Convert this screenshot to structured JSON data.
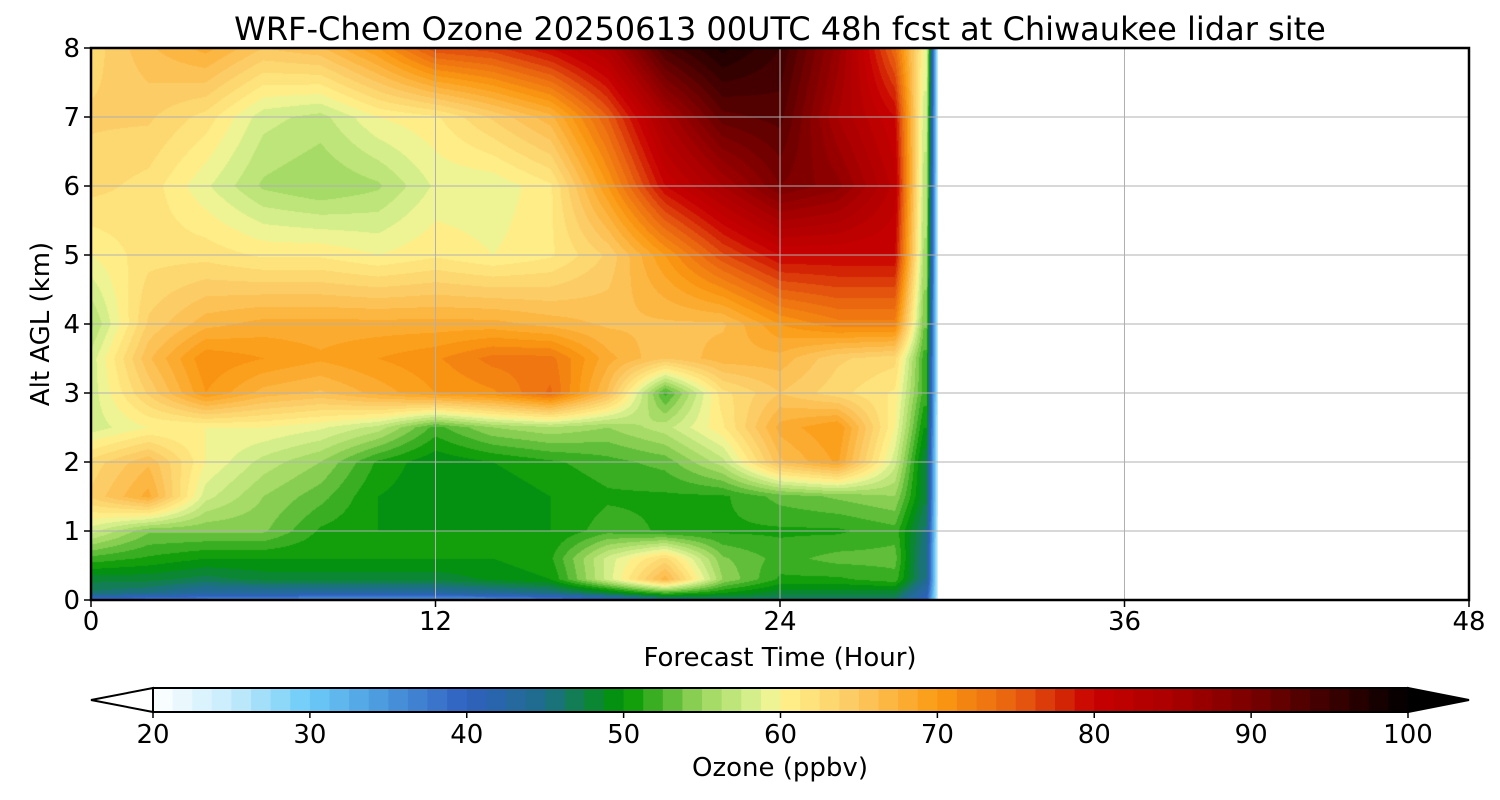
{
  "chart_data": {
    "type": "heatmap",
    "title": "WRF-Chem Ozone  20250613 00UTC 48h fcst at Chiwaukee lidar site",
    "xlabel": "Forecast Time (Hour)",
    "ylabel": "Alt AGL (km)",
    "xlim": [
      0,
      48
    ],
    "ylim": [
      0,
      8
    ],
    "xticks": [
      "0",
      "12",
      "24",
      "36",
      "48"
    ],
    "yticks": [
      "0",
      "1",
      "2",
      "3",
      "4",
      "5",
      "6",
      "7",
      "8"
    ],
    "grid": true,
    "data_extent_hours": [
      0,
      29.5
    ],
    "x_hours": [
      0,
      2,
      4,
      6,
      8,
      10,
      12,
      14,
      16,
      18,
      20,
      22,
      24,
      26,
      28,
      29
    ],
    "y_km": [
      0,
      0.1,
      0.3,
      0.6,
      1,
      1.5,
      2,
      2.5,
      3,
      3.5,
      4,
      5,
      6,
      7,
      8
    ],
    "z_ppbv": [
      [
        37,
        37,
        36,
        35,
        34,
        33,
        33,
        34,
        36,
        40,
        44,
        46,
        46,
        46,
        46,
        40
      ],
      [
        46,
        45,
        43,
        43,
        43,
        43,
        43,
        44,
        45,
        48,
        52,
        50,
        48,
        48,
        48,
        42
      ],
      [
        48,
        48,
        47,
        48,
        48,
        48,
        48,
        49,
        50,
        58,
        67,
        55,
        51,
        51,
        52,
        45
      ],
      [
        52,
        51,
        50,
        50,
        50,
        50,
        50,
        50,
        51,
        58,
        63,
        54,
        52,
        53,
        53,
        45
      ],
      [
        58,
        54,
        54,
        54,
        51,
        50,
        50,
        50,
        50,
        52,
        51,
        51,
        51,
        51,
        52,
        46
      ],
      [
        64,
        68,
        58,
        55,
        53,
        50,
        49,
        49,
        50,
        51,
        51,
        51,
        53,
        54,
        55,
        48
      ],
      [
        63,
        66,
        60,
        57,
        55,
        51,
        49,
        50,
        51,
        52,
        53,
        57,
        66,
        69,
        58,
        48
      ],
      [
        58,
        60,
        60,
        60,
        59,
        57,
        52,
        55,
        56,
        55,
        57,
        61,
        68,
        70,
        60,
        50
      ],
      [
        58,
        64,
        70,
        67,
        66,
        68,
        70,
        71,
        74,
        66,
        52,
        62,
        65,
        63,
        61,
        52
      ],
      [
        58,
        66,
        71,
        70,
        69,
        70,
        71,
        73,
        73,
        68,
        65,
        67,
        67,
        64,
        63,
        52
      ],
      [
        56,
        64,
        67,
        68,
        68,
        68,
        68,
        68,
        67,
        66,
        66,
        66,
        70,
        72,
        72,
        54
      ],
      [
        60,
        62,
        62,
        61,
        61,
        60,
        61,
        60,
        61,
        64,
        70,
        76,
        80,
        80,
        80,
        56
      ],
      [
        63,
        62,
        59,
        56,
        55,
        56,
        59,
        59,
        61,
        70,
        80,
        85,
        90,
        88,
        82,
        57
      ],
      [
        64,
        64,
        62,
        58,
        57,
        60,
        61,
        64,
        67,
        75,
        85,
        92,
        93,
        85,
        80,
        58
      ],
      [
        63,
        66,
        68,
        65,
        66,
        70,
        76,
        77,
        80,
        84,
        94,
        98,
        95,
        87,
        74,
        60
      ]
    ],
    "colorbar": {
      "label": "Ozone  (ppbv)",
      "ticks": [
        "20",
        "30",
        "40",
        "50",
        "60",
        "70",
        "80",
        "90",
        "100"
      ],
      "min": 20,
      "max": 100,
      "extend": "both",
      "stops": [
        {
          "v": 20,
          "c": "#ffffff"
        },
        {
          "v": 25,
          "c": "#c6ebfb"
        },
        {
          "v": 30,
          "c": "#6bcbf8"
        },
        {
          "v": 35,
          "c": "#4a95dc"
        },
        {
          "v": 40,
          "c": "#3060c0"
        },
        {
          "v": 45,
          "c": "#1e6e8a"
        },
        {
          "v": 50,
          "c": "#009600"
        },
        {
          "v": 55,
          "c": "#9ad65e"
        },
        {
          "v": 59,
          "c": "#e4f598"
        },
        {
          "v": 60,
          "c": "#fff38c"
        },
        {
          "v": 65,
          "c": "#fcc860"
        },
        {
          "v": 70,
          "c": "#fb9a12"
        },
        {
          "v": 75,
          "c": "#e86010"
        },
        {
          "v": 80,
          "c": "#c80000"
        },
        {
          "v": 85,
          "c": "#aa0000"
        },
        {
          "v": 90,
          "c": "#7a0000"
        },
        {
          "v": 95,
          "c": "#3c0000"
        },
        {
          "v": 100,
          "c": "#000000"
        }
      ]
    }
  }
}
